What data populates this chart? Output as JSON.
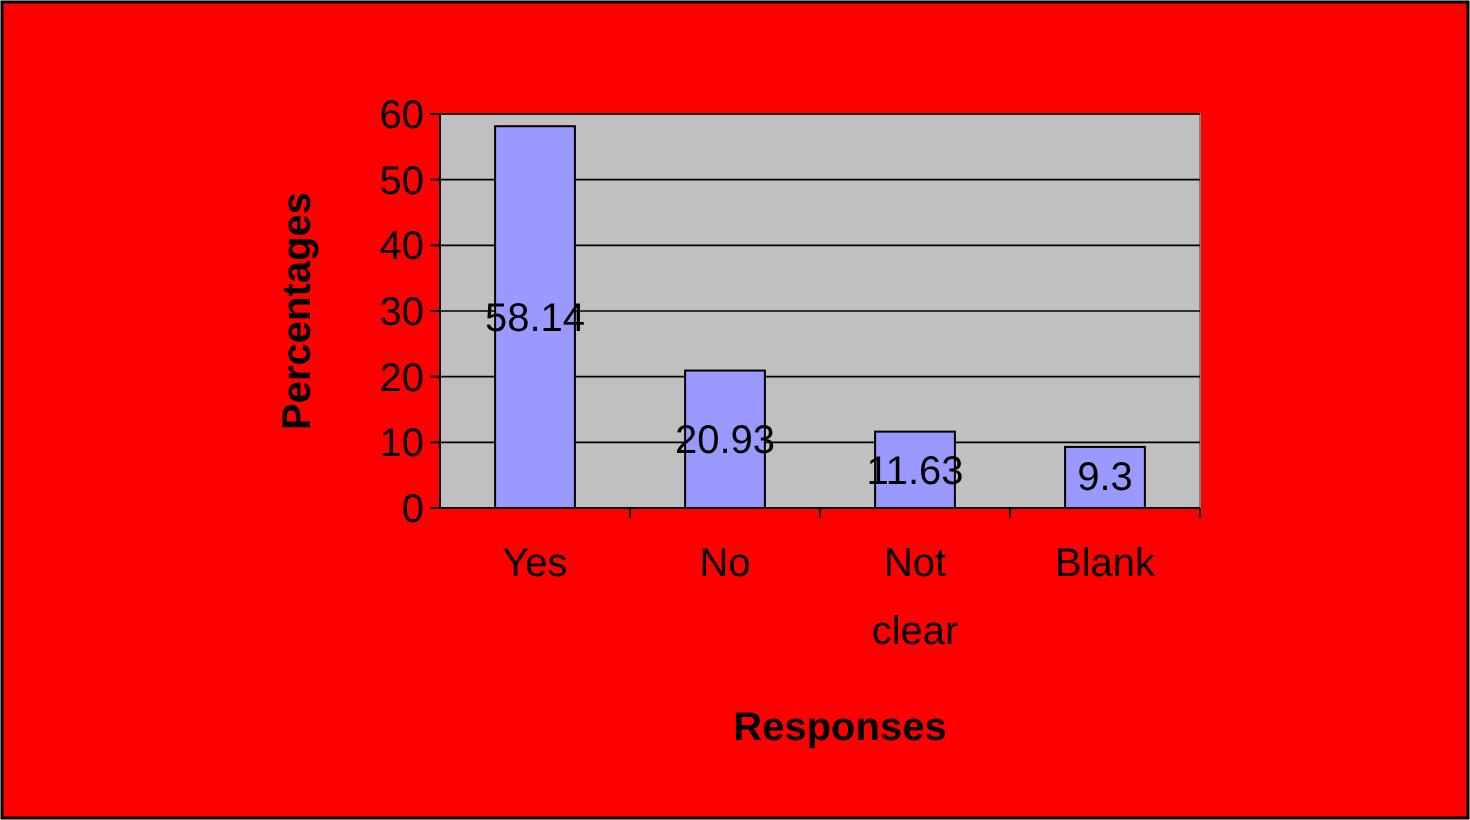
{
  "chart_data": {
    "type": "bar",
    "xlabel": "Responses",
    "ylabel": "Percentages",
    "categories": [
      "Yes",
      "No",
      "Not clear",
      "Blank"
    ],
    "values": [
      58.14,
      20.93,
      11.63,
      9.3
    ],
    "color": "#9999ff",
    "ylim": [
      0,
      60
    ],
    "yticks": [
      0,
      10,
      20,
      30,
      40,
      50,
      60
    ],
    "grid": "y",
    "data_labels": true
  }
}
